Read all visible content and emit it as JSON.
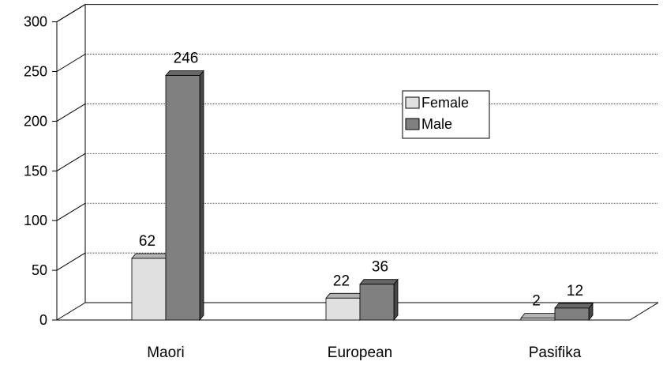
{
  "chart_data": {
    "type": "bar",
    "title": "",
    "xlabel": "",
    "ylabel": "",
    "categories": [
      "Maori",
      "European",
      "Pasifika"
    ],
    "series": [
      {
        "name": "Female",
        "values": [
          62,
          22,
          2
        ],
        "color": "#e0e0e0"
      },
      {
        "name": "Male",
        "values": [
          246,
          36,
          12
        ],
        "color": "#808080"
      }
    ],
    "ylim": [
      0,
      300
    ],
    "yticks": [
      "0",
      "50",
      "100",
      "150",
      "200",
      "250",
      "300"
    ],
    "grid": true,
    "legend": "inside-right"
  }
}
